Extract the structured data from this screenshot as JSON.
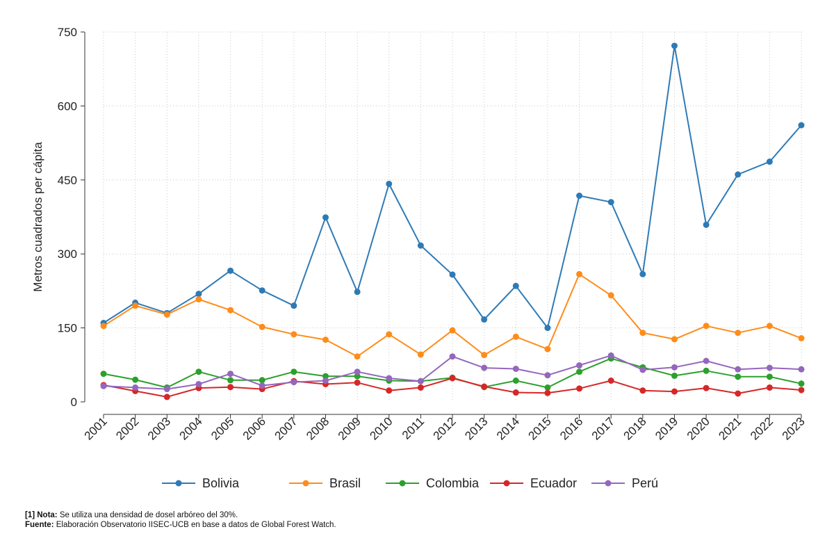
{
  "chart_data": {
    "type": "line",
    "title": "",
    "xlabel": "",
    "ylabel": "Metros cuadrados per cápita",
    "ylim": [
      0,
      750
    ],
    "yticks": [
      0,
      150,
      300,
      450,
      600,
      750
    ],
    "grid": true,
    "legend_position": "bottom",
    "categories": [
      "2001",
      "2002",
      "2003",
      "2004",
      "2005",
      "2006",
      "2007",
      "2008",
      "2009",
      "2010",
      "2011",
      "2012",
      "2013",
      "2014",
      "2015",
      "2016",
      "2017",
      "2018",
      "2019",
      "2020",
      "2021",
      "2022",
      "2023"
    ],
    "series": [
      {
        "name": "Bolivia",
        "color": "#2e7ab5",
        "values": [
          160,
          201,
          180,
          219,
          266,
          226,
          195,
          374,
          223,
          442,
          317,
          258,
          167,
          235,
          150,
          418,
          405,
          259,
          722,
          359,
          461,
          487,
          561
        ]
      },
      {
        "name": "Brasil",
        "color": "#ff8c1a",
        "values": [
          154,
          195,
          177,
          208,
          186,
          152,
          137,
          126,
          92,
          137,
          96,
          145,
          95,
          132,
          107,
          259,
          216,
          140,
          127,
          154,
          140,
          154,
          129
        ]
      },
      {
        "name": "Colombia",
        "color": "#2ca02c",
        "values": [
          57,
          45,
          29,
          61,
          44,
          44,
          61,
          52,
          52,
          43,
          42,
          49,
          30,
          43,
          29,
          61,
          88,
          70,
          53,
          63,
          51,
          51,
          37
        ]
      },
      {
        "name": "Ecuador",
        "color": "#d62728",
        "values": [
          34,
          22,
          10,
          28,
          30,
          26,
          42,
          36,
          39,
          23,
          29,
          48,
          31,
          19,
          18,
          27,
          43,
          23,
          21,
          28,
          17,
          29,
          24
        ]
      },
      {
        "name": "Perú",
        "color": "#9467bd",
        "values": [
          32,
          29,
          26,
          36,
          57,
          33,
          40,
          43,
          61,
          48,
          42,
          92,
          69,
          67,
          54,
          74,
          94,
          65,
          70,
          83,
          66,
          69,
          66
        ]
      }
    ]
  },
  "notes": {
    "nota_label": "[1] Nota:",
    "nota_text": " Se utiliza una densidad de dosel arbóreo del 30%.",
    "fuente_label": "Fuente:",
    "fuente_text": " Elaboración Observatorio IISEC-UCB en base a datos de Global Forest Watch."
  }
}
